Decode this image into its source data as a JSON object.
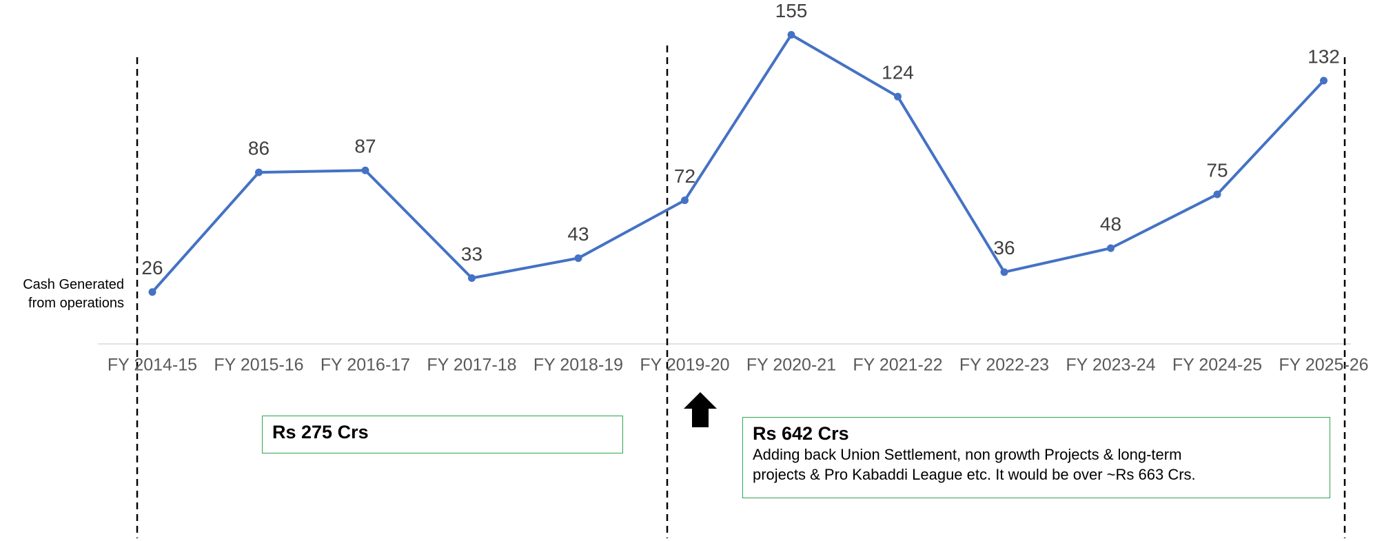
{
  "chart_data": {
    "type": "line",
    "ylabel": "Cash Generated from operations",
    "categories": [
      "FY 2014-15",
      "FY 2015-16",
      "FY 2016-17",
      "FY 2017-18",
      "FY 2018-19",
      "FY 2019-20",
      "FY 2020-21",
      "FY 2021-22",
      "FY 2022-23",
      "FY 2023-24",
      "FY 2024-25",
      "FY 2025-26"
    ],
    "series": [
      {
        "name": "Cash Generated from operations",
        "color": "#4472c4",
        "values": [
          26,
          86,
          87,
          33,
          43,
          72,
          155,
          124,
          36,
          48,
          75,
          132
        ]
      }
    ],
    "ylim": [
      0,
      160
    ],
    "annotations": [
      {
        "title": "Rs 275 Crs"
      },
      {
        "title": "Rs 642 Crs",
        "lines": [
          "Adding back Union Settlement, non growth Projects & long-term",
          "projects & Pro Kabaddi League etc. It would be over ~Rs 663 Crs."
        ]
      }
    ]
  }
}
